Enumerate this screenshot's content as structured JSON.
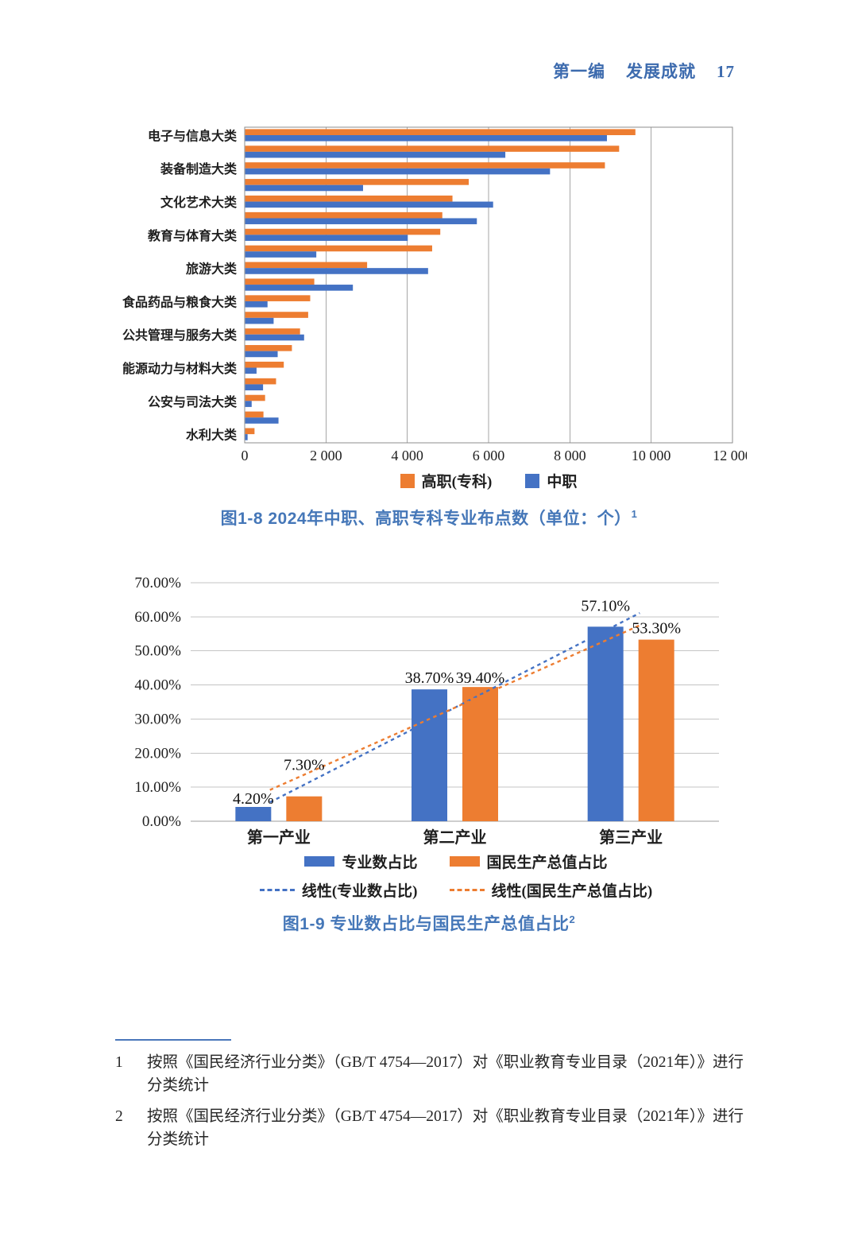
{
  "page_header": {
    "section": "第一编",
    "title": "发展成就",
    "page_number": "17"
  },
  "chart_data": [
    {
      "type": "bar",
      "orientation": "horizontal",
      "title": "图1-8 2024年中职、高职专科专业布点数（单位：个）",
      "caption_superscript": "1",
      "categories": [
        "电子与信息大类",
        "",
        "装备制造大类",
        "",
        "文化艺术大类",
        "",
        "教育与体育大类",
        "",
        "旅游大类",
        "",
        "食品药品与粮食大类",
        "",
        "公共管理与服务大类",
        "",
        "能源动力与材料大类",
        "",
        "公安与司法大类",
        "",
        "水利大类"
      ],
      "series": [
        {
          "name": "高职(专科)",
          "color": "#ED7D31",
          "values": [
            9600,
            9200,
            8850,
            5500,
            5100,
            4850,
            4800,
            4600,
            3000,
            1700,
            1600,
            1550,
            1350,
            1150,
            950,
            760,
            490,
            450,
            230
          ]
        },
        {
          "name": "中职",
          "color": "#4472C4",
          "values": [
            8900,
            6400,
            7500,
            2900,
            6100,
            5700,
            4000,
            1750,
            4500,
            2650,
            550,
            700,
            1450,
            800,
            280,
            440,
            160,
            820,
            60
          ]
        }
      ],
      "xlim": [
        0,
        12000
      ],
      "x_tick_step": 2000,
      "x_tick_labels": [
        "0",
        "2 000",
        "4 000",
        "6 000",
        "8 000",
        "10 000",
        "12 000"
      ],
      "grid": "vertical",
      "legend_position": "bottom"
    },
    {
      "type": "bar",
      "orientation": "vertical",
      "title": "图1-9 专业数占比与国民生产总值占比",
      "caption_superscript": "2",
      "categories": [
        "第一产业",
        "第二产业",
        "第三产业"
      ],
      "series": [
        {
          "name": "专业数占比",
          "color": "#4472C4",
          "values": [
            4.2,
            38.7,
            57.1
          ],
          "data_labels": [
            "4.20%",
            "38.70%",
            "57.10%"
          ]
        },
        {
          "name": "国民生产总值占比",
          "color": "#ED7D31",
          "values": [
            7.3,
            39.4,
            53.3
          ],
          "data_labels": [
            "7.30%",
            "39.40%",
            "53.30%"
          ]
        }
      ],
      "trendlines": [
        {
          "name": "线性(专业数占比)",
          "color": "#4472C4",
          "style": "dashed"
        },
        {
          "name": "线性(国民生产总值占比)",
          "color": "#ED7D31",
          "style": "dashed"
        }
      ],
      "ylim": [
        0,
        70
      ],
      "y_tick_step": 10,
      "y_tick_labels": [
        "0.00%",
        "10.00%",
        "20.00%",
        "30.00%",
        "40.00%",
        "50.00%",
        "60.00%",
        "70.00%"
      ],
      "grid": "horizontal",
      "legend_position": "bottom"
    }
  ],
  "footnotes": [
    {
      "number": "1",
      "text": "按照《国民经济行业分类》（GB/T 4754—2017）对《职业教育专业目录（2021年）》进行分类统计"
    },
    {
      "number": "2",
      "text": "按照《国民经济行业分类》（GB/T 4754—2017）对《职业教育专业目录（2021年）》进行分类统计"
    }
  ]
}
